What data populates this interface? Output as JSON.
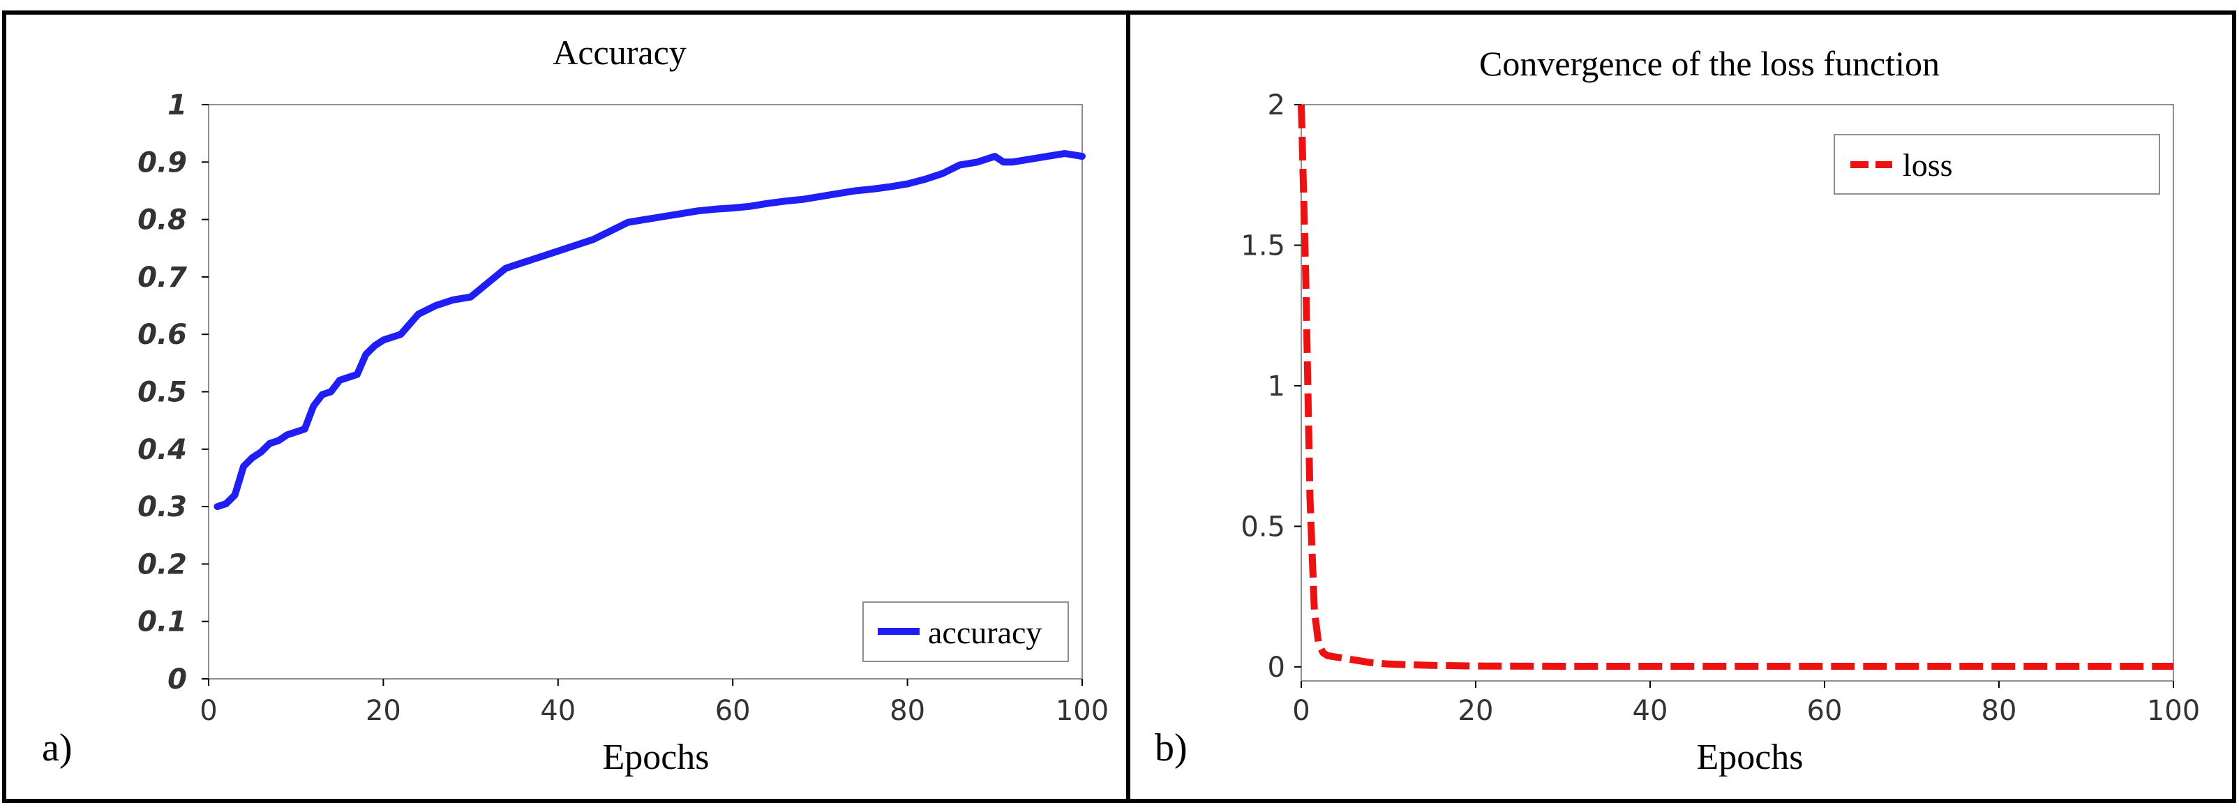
{
  "chart_data": [
    {
      "panel_label": "a)",
      "type": "line",
      "title": "Accuracy",
      "xlabel": "Epochs",
      "ylabel": "",
      "xlim": [
        0,
        100
      ],
      "ylim": [
        0,
        1
      ],
      "xticks": [
        "0",
        "20",
        "40",
        "60",
        "80",
        "100"
      ],
      "xtick_values": [
        0,
        20,
        40,
        60,
        80,
        100
      ],
      "yticks": [
        "0",
        "0.1",
        "0.2",
        "0.3",
        "0.4",
        "0.5",
        "0.6",
        "0.7",
        "0.8",
        "0.9",
        "1"
      ],
      "ytick_values": [
        0,
        0.1,
        0.2,
        0.3,
        0.4,
        0.5,
        0.6,
        0.7,
        0.8,
        0.9,
        1
      ],
      "grid": false,
      "legend_position": "bottom-right",
      "series": [
        {
          "name": "accuracy",
          "color": "#1f1ff5",
          "dash": "solid",
          "x": [
            1,
            2,
            3,
            4,
            5,
            6,
            7,
            8,
            9,
            10,
            11,
            12,
            13,
            14,
            15,
            16,
            17,
            18,
            19,
            20,
            22,
            24,
            26,
            28,
            30,
            32,
            34,
            36,
            38,
            40,
            42,
            44,
            46,
            48,
            50,
            52,
            54,
            56,
            58,
            60,
            62,
            64,
            66,
            68,
            70,
            72,
            74,
            76,
            78,
            80,
            82,
            84,
            86,
            88,
            90,
            91,
            92,
            94,
            96,
            98,
            100
          ],
          "y": [
            0.3,
            0.305,
            0.32,
            0.37,
            0.385,
            0.395,
            0.41,
            0.415,
            0.425,
            0.43,
            0.435,
            0.475,
            0.495,
            0.5,
            0.52,
            0.525,
            0.53,
            0.565,
            0.58,
            0.59,
            0.6,
            0.635,
            0.65,
            0.66,
            0.665,
            0.69,
            0.715,
            0.725,
            0.735,
            0.745,
            0.755,
            0.765,
            0.78,
            0.795,
            0.8,
            0.805,
            0.81,
            0.815,
            0.818,
            0.82,
            0.823,
            0.828,
            0.832,
            0.835,
            0.84,
            0.845,
            0.85,
            0.853,
            0.857,
            0.862,
            0.87,
            0.88,
            0.895,
            0.9,
            0.91,
            0.9,
            0.9,
            0.905,
            0.91,
            0.915,
            0.91
          ]
        }
      ]
    },
    {
      "panel_label": "b)",
      "type": "line",
      "title": "Convergence of the loss function",
      "xlabel": "Epochs",
      "ylabel": "",
      "xlim": [
        0,
        100
      ],
      "ylim": [
        -0.05,
        2
      ],
      "xticks": [
        "0",
        "20",
        "40",
        "60",
        "80",
        "100"
      ],
      "xtick_values": [
        0,
        20,
        40,
        60,
        80,
        100
      ],
      "yticks": [
        "0",
        "0.5",
        "1",
        "1.5",
        "2"
      ],
      "ytick_values": [
        0,
        0.5,
        1,
        1.5,
        2
      ],
      "grid": false,
      "legend_position": "top-right",
      "series": [
        {
          "name": "loss",
          "color": "#ee1111",
          "dash": "dashed",
          "x": [
            0,
            0.5,
            1,
            1.5,
            2,
            2.5,
            3,
            4,
            5,
            6,
            8,
            10,
            15,
            20,
            30,
            40,
            50,
            60,
            70,
            80,
            90,
            100
          ],
          "y": [
            2.0,
            1.4,
            0.6,
            0.2,
            0.08,
            0.05,
            0.04,
            0.035,
            0.03,
            0.025,
            0.015,
            0.01,
            0.005,
            0.003,
            0.002,
            0.002,
            0.002,
            0.002,
            0.002,
            0.002,
            0.002,
            0.002
          ]
        }
      ]
    }
  ]
}
